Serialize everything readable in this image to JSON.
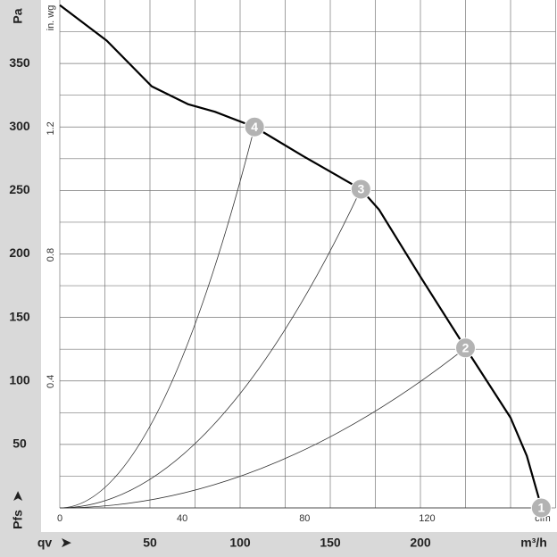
{
  "chart_data": {
    "type": "line",
    "y_unit": "Pa",
    "y_symbol": "Pfs",
    "y2_unit": "in. wg",
    "x_symbol": "qv",
    "x_unit": "m³/h",
    "x2_unit": "cfm",
    "xlim": [
      0,
      275
    ],
    "xticks": [
      50,
      100,
      150,
      200
    ],
    "xgrid": [
      25,
      50,
      75,
      100,
      125,
      150,
      175,
      200,
      225,
      250,
      275
    ],
    "ylim": [
      0,
      400
    ],
    "yticks": [
      50,
      100,
      150,
      200,
      250,
      300,
      350
    ],
    "ygrid": [
      25,
      50,
      75,
      100,
      125,
      150,
      175,
      200,
      225,
      250,
      275,
      300,
      325,
      350,
      375
    ],
    "x2lim": [
      0,
      162
    ],
    "x2ticks": [
      0,
      40,
      80,
      120
    ],
    "y2lim": [
      0,
      1.606
    ],
    "y2ticks": [
      0.4,
      0.8,
      1.2
    ],
    "series": [
      {
        "color": "#000000",
        "x": [
          0,
          26,
          51,
          71,
          86,
          108,
          135,
          167,
          177,
          200,
          225,
          250,
          259,
          267
        ],
        "values": [
          396,
          368,
          332,
          318,
          312,
          300,
          277,
          251,
          235,
          182,
          126,
          71,
          41,
          1
        ]
      }
    ],
    "points": {
      "labels": [
        "1",
        "2",
        "3",
        "4"
      ],
      "x": [
        267,
        225,
        167,
        108
      ],
      "values": [
        0,
        126,
        251,
        300
      ],
      "color": "#b3b3b3"
    }
  }
}
